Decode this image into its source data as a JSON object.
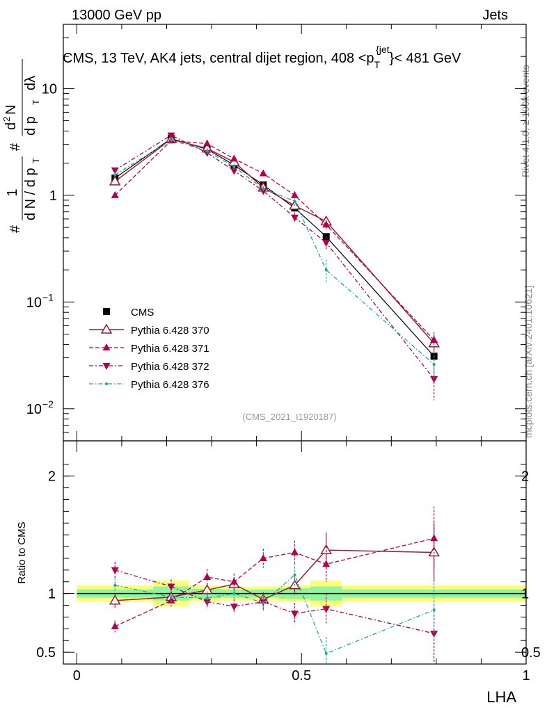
{
  "header": {
    "left": "13000 GeV pp",
    "right": "Jets"
  },
  "side_labels": {
    "rivet": "Rivet 4.1.0, ≥ 100k events",
    "mcplots": "mcplots.cern.ch [arXiv:2401.10621]"
  },
  "colors": {
    "cms": "#000000",
    "p370": "#9b1b30",
    "p371": "#b3004f",
    "p372": "#b3004f",
    "p376": "#1aa89a",
    "band_inner": "#8ff59e",
    "band_outer": "#fbff7a"
  },
  "chart_data": [
    {
      "type": "scatter",
      "panel": "main",
      "title": "CMS, 13 TeV, AK4 jets, central dijet region, 408 <p_T^{jet}< 481 GeV",
      "title_parts": {
        "a": "CMS, 13 TeV, AK4 jets, central dijet region, 408 <p",
        "sub": "T",
        "sup": "{jet",
        "b": "}< 481 GeV"
      },
      "ylabel_parts": [
        "#",
        "1",
        "d N / d p",
        "T",
        "#",
        "d",
        "2",
        "N",
        "d p",
        "T",
        "dλ"
      ],
      "yscale": "log",
      "ylim": [
        0.005,
        40
      ],
      "xlim": [
        -0.03,
        1.0
      ],
      "y_ticks": [
        {
          "value": 10,
          "label": "10"
        },
        {
          "value": 1,
          "label": "1"
        },
        {
          "value": 0.1,
          "base": "10",
          "exp": "−1"
        },
        {
          "value": 0.01,
          "base": "10",
          "exp": "−2"
        }
      ],
      "watermark": "(CMS_2021_I1920187)",
      "x": [
        0.085,
        0.21,
        0.29,
        0.35,
        0.415,
        0.485,
        0.555,
        0.795
      ],
      "series": [
        {
          "name": "CMS",
          "key": "cms",
          "style": "square",
          "values": [
            1.45,
            3.4,
            2.7,
            1.92,
            1.25,
            0.76,
            0.41,
            0.031
          ],
          "err": [
            0.08,
            0.2,
            0.15,
            0.1,
            0.07,
            0.04,
            0.03,
            0.003
          ]
        },
        {
          "name": "Pythia 6.428 370",
          "key": "p370",
          "style": "open-triangle",
          "values": [
            1.35,
            3.35,
            2.75,
            2.05,
            1.18,
            0.8,
            0.57,
            0.041
          ],
          "err": [
            0.1,
            0.2,
            0.18,
            0.12,
            0.08,
            0.06,
            0.06,
            0.008
          ]
        },
        {
          "name": "Pythia 6.428 371",
          "key": "p371",
          "style": "triangle-up",
          "values": [
            1.0,
            3.25,
            3.05,
            2.2,
            1.6,
            1.0,
            0.53,
            0.044
          ],
          "err": [
            0.07,
            0.2,
            0.2,
            0.15,
            0.1,
            0.07,
            0.06,
            0.008
          ]
        },
        {
          "name": "Pythia 6.428 372",
          "key": "p372",
          "style": "triangle-down",
          "values": [
            1.72,
            3.65,
            2.5,
            1.7,
            1.1,
            0.62,
            0.36,
            0.019
          ],
          "err": [
            0.1,
            0.2,
            0.17,
            0.12,
            0.08,
            0.07,
            0.05,
            0.007
          ]
        },
        {
          "name": "Pythia 6.428 376",
          "key": "p376",
          "style": "dot",
          "values": [
            1.55,
            3.3,
            2.6,
            1.85,
            1.15,
            0.88,
            0.2,
            0.026
          ],
          "err": [
            0.1,
            0.2,
            0.17,
            0.12,
            0.08,
            0.08,
            0.05,
            0.008
          ]
        }
      ]
    },
    {
      "type": "scatter",
      "panel": "ratio",
      "ylabel": "Ratio to CMS",
      "xlabel": "LHA",
      "ylim": [
        0.4,
        2.3
      ],
      "xlim": [
        -0.03,
        1.0
      ],
      "y_ticks": [
        {
          "value": 2,
          "label": "2"
        },
        {
          "value": 1,
          "label": "1"
        },
        {
          "value": 0.5,
          "label": "0.5"
        }
      ],
      "x_ticks": [
        {
          "value": 0,
          "label": "0"
        },
        {
          "value": 0.5,
          "label": "0.5"
        },
        {
          "value": 1,
          "label": "1"
        }
      ],
      "bands": [
        {
          "x0": 0.0,
          "x1": 0.17,
          "inner": 0.035,
          "outer": 0.07
        },
        {
          "x0": 0.17,
          "x1": 0.25,
          "inner": 0.06,
          "outer": 0.11
        },
        {
          "x0": 0.25,
          "x1": 0.32,
          "inner": 0.04,
          "outer": 0.07
        },
        {
          "x0": 0.32,
          "x1": 0.38,
          "inner": 0.035,
          "outer": 0.06
        },
        {
          "x0": 0.38,
          "x1": 0.45,
          "inner": 0.035,
          "outer": 0.06
        },
        {
          "x0": 0.45,
          "x1": 0.52,
          "inner": 0.045,
          "outer": 0.07
        },
        {
          "x0": 0.52,
          "x1": 0.59,
          "inner": 0.06,
          "outer": 0.11
        },
        {
          "x0": 0.59,
          "x1": 1.0,
          "inner": 0.035,
          "outer": 0.07
        }
      ],
      "x": [
        0.085,
        0.21,
        0.29,
        0.35,
        0.415,
        0.485,
        0.555,
        0.795
      ],
      "series": [
        {
          "name": "Pythia 6.428 370",
          "key": "p370",
          "style": "open-triangle",
          "values": [
            0.94,
            0.97,
            1.03,
            1.08,
            0.95,
            1.07,
            1.37,
            1.35
          ],
          "err": [
            0.06,
            0.05,
            0.06,
            0.06,
            0.06,
            0.08,
            0.15,
            0.25
          ]
        },
        {
          "name": "Pythia 6.428 371",
          "key": "p371",
          "style": "triangle-up",
          "values": [
            0.72,
            0.94,
            1.14,
            1.1,
            1.3,
            1.35,
            1.25,
            1.47
          ],
          "err": [
            0.05,
            0.05,
            0.07,
            0.07,
            0.08,
            0.1,
            0.15,
            0.27
          ]
        },
        {
          "name": "Pythia 6.428 372",
          "key": "p372",
          "style": "triangle-down",
          "values": [
            1.2,
            1.06,
            0.93,
            0.89,
            0.93,
            0.83,
            0.87,
            0.66
          ],
          "err": [
            0.07,
            0.06,
            0.06,
            0.06,
            0.07,
            0.09,
            0.13,
            0.25
          ]
        },
        {
          "name": "Pythia 6.428 376",
          "key": "p376",
          "style": "dot",
          "values": [
            1.07,
            0.97,
            0.96,
            1.0,
            0.92,
            1.16,
            0.49,
            0.86
          ],
          "err": [
            0.06,
            0.06,
            0.06,
            0.06,
            0.07,
            0.1,
            0.14,
            0.26
          ]
        }
      ]
    }
  ]
}
